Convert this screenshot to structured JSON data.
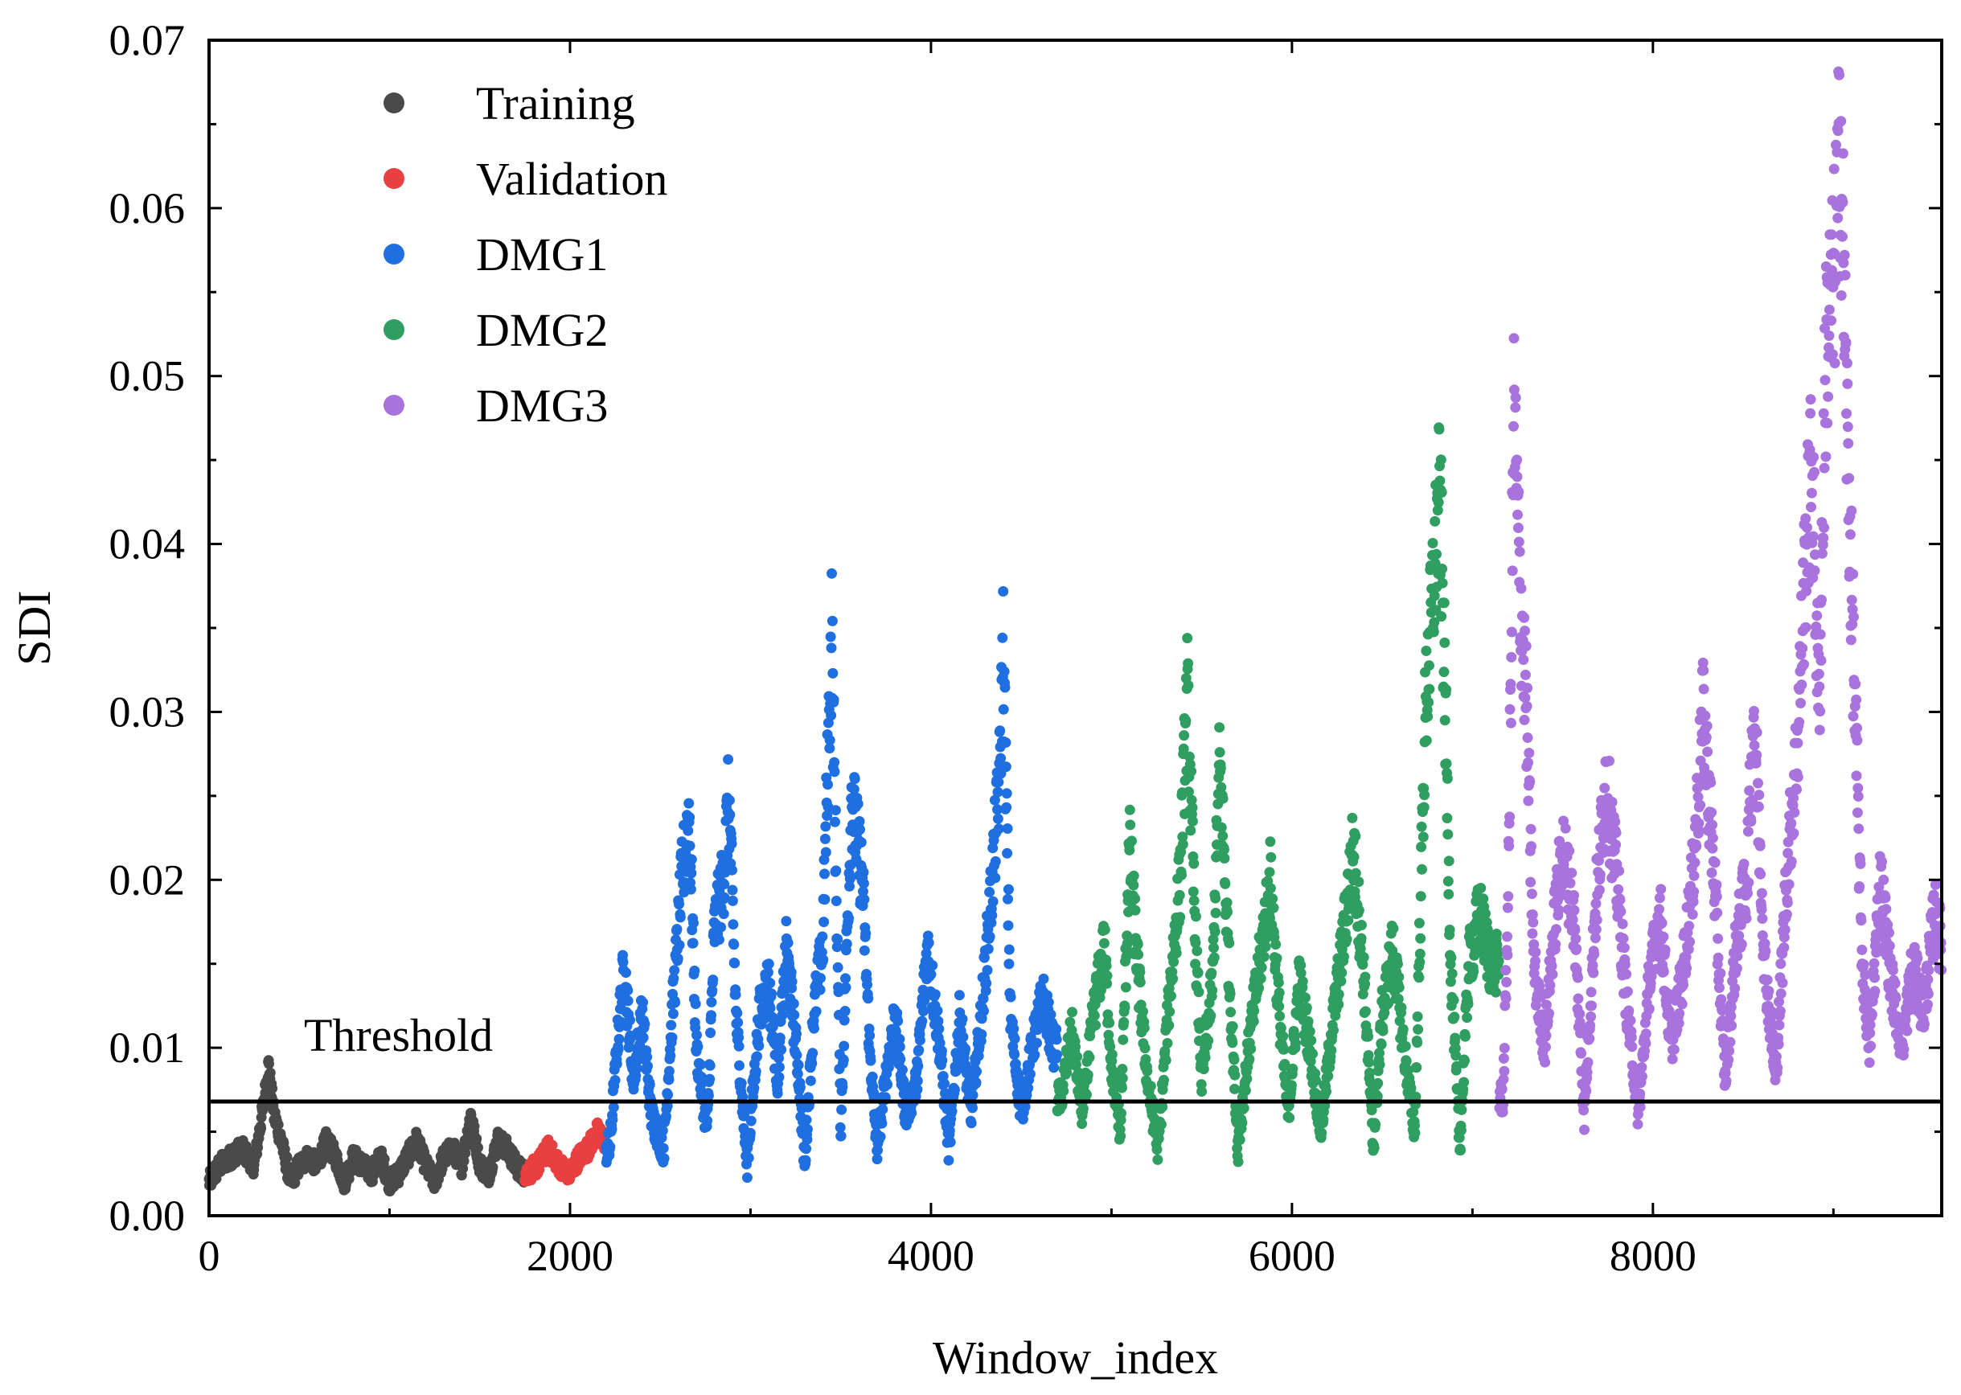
{
  "chart_data": {
    "type": "scatter",
    "title": "",
    "xlabel": "Window_index",
    "ylabel": "SDI",
    "xlim": [
      0,
      9600
    ],
    "ylim": [
      0,
      0.07
    ],
    "x_ticks": [
      0,
      2000,
      4000,
      6000,
      8000
    ],
    "x_tick_labels": [
      "0",
      "2000",
      "4000",
      "6000",
      "8000"
    ],
    "y_ticks": [
      0,
      0.01,
      0.02,
      0.03,
      0.04,
      0.05,
      0.06,
      0.07
    ],
    "y_tick_labels": [
      "0.00",
      "0.01",
      "0.02",
      "0.03",
      "0.04",
      "0.05",
      "0.06",
      "0.07"
    ],
    "grid": false,
    "legend_position": "top-left",
    "threshold": {
      "value": 0.0068,
      "label": "Threshold"
    },
    "series": [
      {
        "name": "Training",
        "color": "#4a4a4a",
        "x_range": [
          0,
          1750
        ],
        "points": [
          [
            0,
            0.002
          ],
          [
            60,
            0.003
          ],
          [
            120,
            0.0035
          ],
          [
            180,
            0.004
          ],
          [
            250,
            0.003
          ],
          [
            300,
            0.0065
          ],
          [
            330,
            0.009
          ],
          [
            360,
            0.006
          ],
          [
            400,
            0.0045
          ],
          [
            450,
            0.002
          ],
          [
            500,
            0.003
          ],
          [
            550,
            0.0035
          ],
          [
            600,
            0.003
          ],
          [
            650,
            0.0045
          ],
          [
            700,
            0.0035
          ],
          [
            750,
            0.002
          ],
          [
            800,
            0.0035
          ],
          [
            850,
            0.003
          ],
          [
            900,
            0.0025
          ],
          [
            950,
            0.0035
          ],
          [
            1000,
            0.002
          ],
          [
            1050,
            0.0025
          ],
          [
            1100,
            0.0035
          ],
          [
            1150,
            0.0045
          ],
          [
            1200,
            0.003
          ],
          [
            1250,
            0.002
          ],
          [
            1300,
            0.0035
          ],
          [
            1350,
            0.004
          ],
          [
            1400,
            0.003
          ],
          [
            1450,
            0.006
          ],
          [
            1500,
            0.003
          ],
          [
            1550,
            0.0025
          ],
          [
            1600,
            0.0045
          ],
          [
            1650,
            0.004
          ],
          [
            1700,
            0.003
          ],
          [
            1750,
            0.0025
          ]
        ]
      },
      {
        "name": "Validation",
        "color": "#e84040",
        "x_range": [
          1750,
          2200
        ],
        "points": [
          [
            1760,
            0.0025
          ],
          [
            1820,
            0.003
          ],
          [
            1880,
            0.004
          ],
          [
            1940,
            0.003
          ],
          [
            2000,
            0.0025
          ],
          [
            2050,
            0.0035
          ],
          [
            2100,
            0.004
          ],
          [
            2150,
            0.005
          ],
          [
            2190,
            0.0045
          ]
        ]
      },
      {
        "name": "DMG1",
        "color": "#1f6fe0",
        "x_range": [
          2200,
          4700
        ],
        "points": [
          [
            2220,
            0.004
          ],
          [
            2260,
            0.01
          ],
          [
            2300,
            0.015
          ],
          [
            2350,
            0.008
          ],
          [
            2400,
            0.012
          ],
          [
            2450,
            0.006
          ],
          [
            2520,
            0.004
          ],
          [
            2560,
            0.011
          ],
          [
            2620,
            0.02
          ],
          [
            2660,
            0.024
          ],
          [
            2700,
            0.01
          ],
          [
            2760,
            0.005
          ],
          [
            2800,
            0.017
          ],
          [
            2850,
            0.02
          ],
          [
            2880,
            0.025
          ],
          [
            2920,
            0.012
          ],
          [
            2980,
            0.003
          ],
          [
            3050,
            0.012
          ],
          [
            3100,
            0.014
          ],
          [
            3150,
            0.008
          ],
          [
            3200,
            0.016
          ],
          [
            3270,
            0.008
          ],
          [
            3300,
            0.003
          ],
          [
            3350,
            0.012
          ],
          [
            3400,
            0.016
          ],
          [
            3450,
            0.035
          ],
          [
            3500,
            0.005
          ],
          [
            3560,
            0.025
          ],
          [
            3620,
            0.02
          ],
          [
            3660,
            0.01
          ],
          [
            3700,
            0.004
          ],
          [
            3760,
            0.009
          ],
          [
            3800,
            0.012
          ],
          [
            3860,
            0.006
          ],
          [
            3920,
            0.008
          ],
          [
            3980,
            0.016
          ],
          [
            4050,
            0.01
          ],
          [
            4100,
            0.004
          ],
          [
            4160,
            0.012
          ],
          [
            4220,
            0.006
          ],
          [
            4280,
            0.012
          ],
          [
            4340,
            0.02
          ],
          [
            4380,
            0.026
          ],
          [
            4400,
            0.034
          ],
          [
            4440,
            0.012
          ],
          [
            4500,
            0.006
          ],
          [
            4560,
            0.01
          ],
          [
            4620,
            0.013
          ],
          [
            4680,
            0.01
          ]
        ]
      },
      {
        "name": "DMG2",
        "color": "#2f9e60",
        "x_range": [
          4700,
          7150
        ],
        "points": [
          [
            4720,
            0.007
          ],
          [
            4780,
            0.011
          ],
          [
            4840,
            0.006
          ],
          [
            4900,
            0.012
          ],
          [
            4960,
            0.016
          ],
          [
            5000,
            0.009
          ],
          [
            5050,
            0.005
          ],
          [
            5100,
            0.022
          ],
          [
            5150,
            0.014
          ],
          [
            5200,
            0.008
          ],
          [
            5260,
            0.004
          ],
          [
            5320,
            0.013
          ],
          [
            5380,
            0.02
          ],
          [
            5420,
            0.031
          ],
          [
            5460,
            0.018
          ],
          [
            5500,
            0.008
          ],
          [
            5560,
            0.014
          ],
          [
            5600,
            0.027
          ],
          [
            5650,
            0.015
          ],
          [
            5700,
            0.004
          ],
          [
            5760,
            0.01
          ],
          [
            5820,
            0.015
          ],
          [
            5880,
            0.02
          ],
          [
            5930,
            0.012
          ],
          [
            5980,
            0.006
          ],
          [
            6040,
            0.014
          ],
          [
            6100,
            0.01
          ],
          [
            6160,
            0.005
          ],
          [
            6220,
            0.011
          ],
          [
            6280,
            0.016
          ],
          [
            6340,
            0.022
          ],
          [
            6400,
            0.014
          ],
          [
            6450,
            0.004
          ],
          [
            6500,
            0.012
          ],
          [
            6560,
            0.016
          ],
          [
            6620,
            0.01
          ],
          [
            6680,
            0.005
          ],
          [
            6740,
            0.03
          ],
          [
            6780,
            0.037
          ],
          [
            6820,
            0.043
          ],
          [
            6850,
            0.03
          ],
          [
            6880,
            0.015
          ],
          [
            6930,
            0.004
          ],
          [
            6980,
            0.015
          ],
          [
            7040,
            0.018
          ],
          [
            7100,
            0.015
          ]
        ]
      },
      {
        "name": "DMG3",
        "color": "#a873dc",
        "x_range": [
          7150,
          9600
        ],
        "points": [
          [
            7170,
            0.007
          ],
          [
            7200,
            0.02
          ],
          [
            7230,
            0.048
          ],
          [
            7260,
            0.038
          ],
          [
            7300,
            0.03
          ],
          [
            7340,
            0.015
          ],
          [
            7400,
            0.01
          ],
          [
            7450,
            0.017
          ],
          [
            7500,
            0.022
          ],
          [
            7560,
            0.018
          ],
          [
            7620,
            0.006
          ],
          [
            7680,
            0.018
          ],
          [
            7740,
            0.026
          ],
          [
            7800,
            0.02
          ],
          [
            7860,
            0.012
          ],
          [
            7920,
            0.006
          ],
          [
            7980,
            0.014
          ],
          [
            8040,
            0.018
          ],
          [
            8100,
            0.01
          ],
          [
            8160,
            0.014
          ],
          [
            8220,
            0.02
          ],
          [
            8280,
            0.03
          ],
          [
            8340,
            0.02
          ],
          [
            8400,
            0.008
          ],
          [
            8460,
            0.016
          ],
          [
            8520,
            0.02
          ],
          [
            8560,
            0.03
          ],
          [
            8620,
            0.015
          ],
          [
            8680,
            0.008
          ],
          [
            8740,
            0.02
          ],
          [
            8800,
            0.028
          ],
          [
            8840,
            0.038
          ],
          [
            8880,
            0.045
          ],
          [
            8920,
            0.03
          ],
          [
            8960,
            0.052
          ],
          [
            9000,
            0.055
          ],
          [
            9040,
            0.064
          ],
          [
            9080,
            0.045
          ],
          [
            9120,
            0.03
          ],
          [
            9160,
            0.015
          ],
          [
            9200,
            0.01
          ],
          [
            9260,
            0.02
          ],
          [
            9320,
            0.014
          ],
          [
            9380,
            0.01
          ],
          [
            9440,
            0.015
          ],
          [
            9500,
            0.012
          ],
          [
            9560,
            0.018
          ],
          [
            9600,
            0.016
          ]
        ]
      }
    ]
  }
}
